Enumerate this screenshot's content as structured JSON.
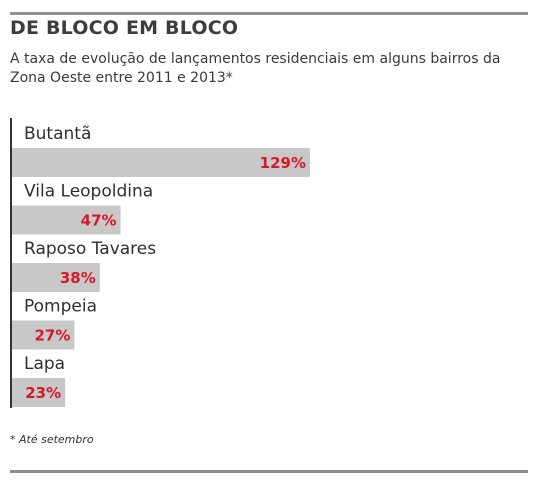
{
  "header": {
    "title": "DE BLOCO EM BLOCO",
    "subtitle": "A taxa de evolução de lançamentos residenciais em alguns bairros da Zona Oeste entre 2011 e 2013*"
  },
  "footnote": "* Até setembro",
  "colors": {
    "bar": "#c8c8c8",
    "value_label": "#d7182a",
    "axis": "#333333",
    "rule": "#8f8f8f"
  },
  "chart_data": {
    "type": "bar",
    "orientation": "horizontal",
    "categories": [
      "Butantã",
      "Vila Leopoldina",
      "Raposo Tavares",
      "Pompeia",
      "Lapa"
    ],
    "values": [
      129,
      47,
      38,
      27,
      23
    ],
    "value_labels": [
      "129%",
      "47%",
      "38%",
      "27%",
      "23%"
    ],
    "unit": "%",
    "title": "DE BLOCO EM BLOCO",
    "xlabel": "",
    "ylabel": "",
    "grid": false,
    "legend": "none"
  }
}
